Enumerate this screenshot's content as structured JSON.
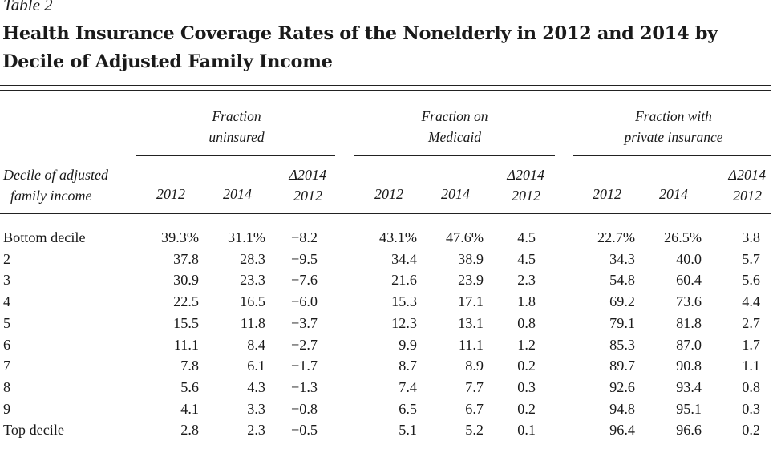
{
  "table_label": "Table 2",
  "title": "Health Insurance Coverage Rates of the Nonelderly in 2012 and 2014 by Decile of Adjusted Family Income",
  "row_header": [
    "Decile of adjusted",
    "family income"
  ],
  "groups": [
    {
      "lines": [
        "Fraction",
        "uninsured"
      ]
    },
    {
      "lines": [
        "Fraction on",
        "Medicaid"
      ]
    },
    {
      "lines": [
        "Fraction with",
        "private insurance"
      ]
    }
  ],
  "col_year_labels": [
    "2012",
    "2014"
  ],
  "delta_label": [
    "Δ2014–",
    "2012"
  ],
  "rows": [
    {
      "label": "Bottom decile",
      "values": [
        "39.3%",
        "31.1%",
        "−8.2",
        "43.1%",
        "47.6%",
        "4.5",
        "22.7%",
        "26.5%",
        "3.8"
      ]
    },
    {
      "label": "2",
      "values": [
        "37.8",
        "28.3",
        "−9.5",
        "34.4",
        "38.9",
        "4.5",
        "34.3",
        "40.0",
        "5.7"
      ]
    },
    {
      "label": "3",
      "values": [
        "30.9",
        "23.3",
        "−7.6",
        "21.6",
        "23.9",
        "2.3",
        "54.8",
        "60.4",
        "5.6"
      ]
    },
    {
      "label": "4",
      "values": [
        "22.5",
        "16.5",
        "−6.0",
        "15.3",
        "17.1",
        "1.8",
        "69.2",
        "73.6",
        "4.4"
      ]
    },
    {
      "label": "5",
      "values": [
        "15.5",
        "11.8",
        "−3.7",
        "12.3",
        "13.1",
        "0.8",
        "79.1",
        "81.8",
        "2.7"
      ]
    },
    {
      "label": "6",
      "values": [
        "11.1",
        "8.4",
        "−2.7",
        "9.9",
        "11.1",
        "1.2",
        "85.3",
        "87.0",
        "1.7"
      ]
    },
    {
      "label": "7",
      "values": [
        "7.8",
        "6.1",
        "−1.7",
        "8.7",
        "8.9",
        "0.2",
        "89.7",
        "90.8",
        "1.1"
      ]
    },
    {
      "label": "8",
      "values": [
        "5.6",
        "4.3",
        "−1.3",
        "7.4",
        "7.7",
        "0.3",
        "92.6",
        "93.4",
        "0.8"
      ]
    },
    {
      "label": "9",
      "values": [
        "4.1",
        "3.3",
        "−0.8",
        "6.5",
        "6.7",
        "0.2",
        "94.8",
        "95.1",
        "0.3"
      ]
    },
    {
      "label": "Top decile",
      "values": [
        "2.8",
        "2.3",
        "−0.5",
        "5.1",
        "5.2",
        "0.1",
        "96.4",
        "96.6",
        "0.2"
      ]
    }
  ]
}
